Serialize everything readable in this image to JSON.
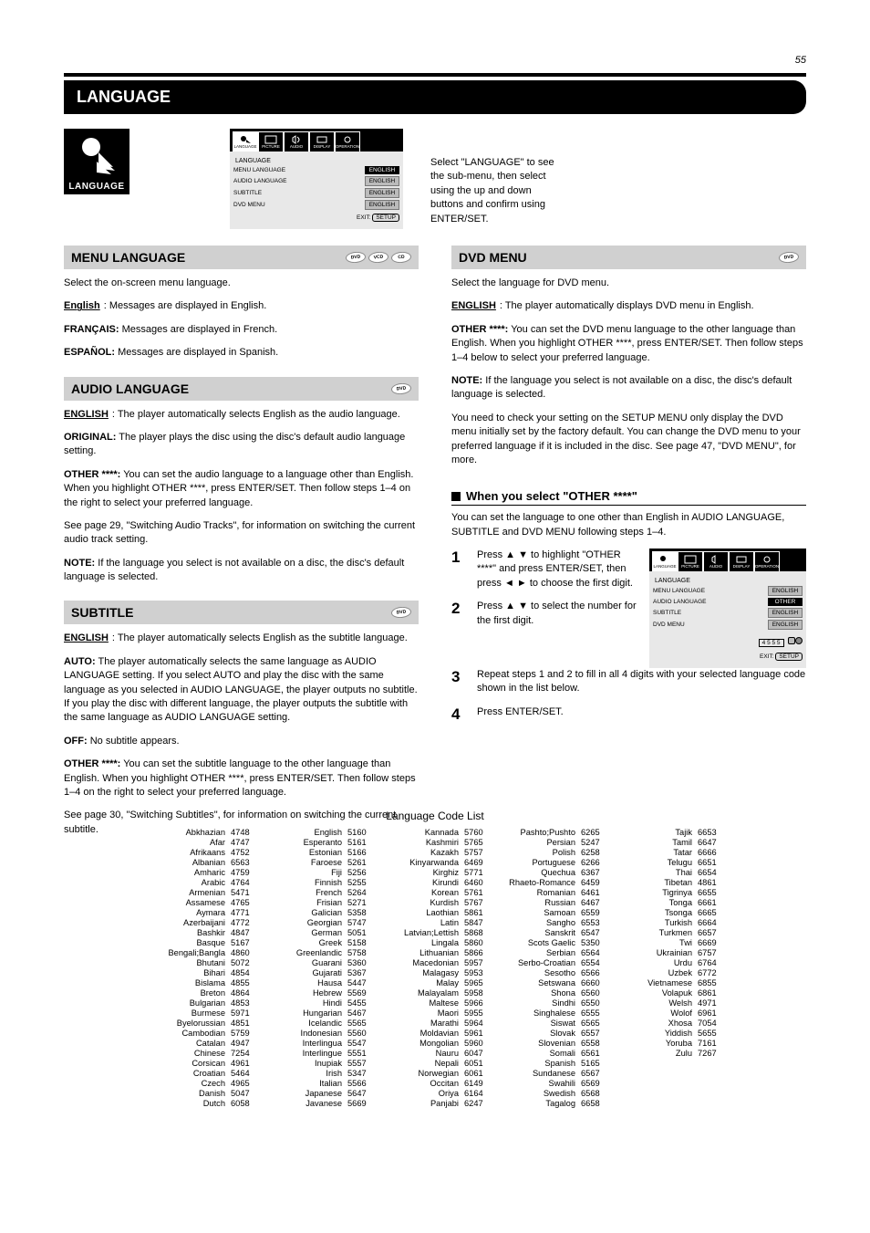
{
  "page_number": "55",
  "section_title": "LANGUAGE",
  "language_icon_label": "LANGUAGE",
  "intro_text": "Select \"LANGUAGE\" to see the sub-menu, then select using the up and down buttons and confirm using ENTER/SET.",
  "main_menu": {
    "tabs": [
      "LANGUAGE",
      "PICTURE",
      "AUDIO",
      "DISPLAY",
      "OPERATION"
    ],
    "section_label": "LANGUAGE",
    "items": [
      {
        "label": "MENU LANGUAGE",
        "value": "ENGLISH"
      },
      {
        "label": "AUDIO LANGUAGE",
        "value": "ENGLISH"
      },
      {
        "label": "SUBTITLE",
        "value": "ENGLISH"
      },
      {
        "label": "DVD MENU",
        "value": "ENGLISH"
      }
    ],
    "exit_label": "EXIT: ",
    "exit_btn": "SETUP"
  },
  "subsection_menu": {
    "title": "MENU LANGUAGE",
    "discs": [
      "DVD",
      "VCD",
      "CD"
    ],
    "body": "Select the on-screen menu language.",
    "line_en": "English",
    "line_en_desc": "Messages are displayed in English.",
    "line_fr_label": "FRANÇAIS:",
    "line_fr_desc": "Messages are displayed in French.",
    "line_es": "ESPAÑOL:",
    "line_es_desc": "Messages are displayed in Spanish."
  },
  "subsection_audio": {
    "title": "AUDIO LANGUAGE",
    "discs": [
      "DVD"
    ],
    "intro_label": "ENGLISH",
    "intro_desc1": ": The player automatically selects English as the audio language.",
    "orig_label": "ORIGINAL:",
    "orig_desc": " The player plays the disc using the disc's default audio language setting.",
    "other_label": "OTHER ****:",
    "other_desc": " You can set the audio language to a language other than English. When you highlight OTHER ****, press ENTER/SET. Then follow steps 1–4 on the right to select your preferred language.",
    "see_ref": "See page 29, \"Switching Audio Tracks\", for information on switching the current audio track setting.",
    "note_label": "NOTE:",
    "note_body": " If the language you select is not available on a disc, the disc's default language is selected."
  },
  "subsection_subtitle": {
    "title": "SUBTITLE",
    "discs": [
      "DVD"
    ],
    "intro_label": "ENGLISH",
    "intro_desc1": ": The player automatically selects English as the subtitle language.",
    "auto_label": "AUTO:",
    "auto_desc": " The player automatically selects the same language as AUDIO LANGUAGE setting. If you select AUTO and play the disc with the same language as you selected in AUDIO LANGUAGE, the player outputs no subtitle. If you play the disc with different language, the player outputs the subtitle with the same language as AUDIO LANGUAGE setting.",
    "off_label": "OFF:",
    "off_desc": " No subtitle appears.",
    "other_label": "OTHER ****:",
    "other_desc": " You can set the subtitle language to the other language than English. When you highlight OTHER ****, press ENTER/SET. Then follow steps 1–4 on the right to select your preferred language.",
    "see_ref": "See page 30, \"Switching Subtitles\", for information on switching the current subtitle."
  },
  "subsection_dvdmenu": {
    "title": "DVD MENU",
    "discs": [
      "DVD"
    ],
    "intro_label": "ENGLISH",
    "intro_desc": ": The player automatically displays DVD menu in English.",
    "menu_intro": "Select the language for DVD menu.",
    "other_label": "OTHER ****:",
    "other_desc": " You can set the DVD menu language to the other language than English. When you highlight OTHER ****, press ENTER/SET. Then follow steps 1–4 below to select your preferred language.",
    "note_label": "NOTE:",
    "note_body": " If the language you select is not available on a disc, the disc's default language is selected.",
    "settings_ref": "You need to check your setting on the SETUP MENU only display the DVD menu initially set by the factory default. You can change the DVD menu to your preferred language if it is included in the disc. See page 47, \"DVD MENU\", for more."
  },
  "other_steps_title": "When you select \"OTHER ****\"",
  "other_steps_intro": "You can set the language to one other than English in AUDIO LANGUAGE, SUBTITLE and DVD MENU following steps 1–4.",
  "steps": [
    {
      "num": "1",
      "text": "Press ▲ ▼ to highlight \"OTHER ****\" and press ENTER/SET, then press ◄ ► to choose the first digit."
    },
    {
      "num": "2",
      "text": "Press ▲ ▼ to select the number for the first digit."
    },
    {
      "num": "3",
      "text": "Repeat steps 1 and 2 to fill in all 4 digits with your selected language code shown in the list below."
    },
    {
      "num": "4",
      "text": "Press ENTER/SET."
    }
  ],
  "step_menu": {
    "section_label": "LANGUAGE",
    "items": [
      {
        "label": "MENU LANGUAGE",
        "value": "ENGLISH"
      },
      {
        "label": "AUDIO LANGUAGE",
        "value": "OTHER"
      },
      {
        "label": "SUBTITLE",
        "value": "ENGLISH"
      },
      {
        "label": "DVD MENU",
        "value": "ENGLISH"
      }
    ],
    "code_display": "4 5 5 5",
    "exit_label": "EXIT: ",
    "exit_btn": "SETUP"
  },
  "code_table_title": "Language Code List",
  "codes_col1": [
    [
      "Abkhazian",
      "4748"
    ],
    [
      "Afar",
      "4747"
    ],
    [
      "Afrikaans",
      "4752"
    ],
    [
      "Albanian",
      "6563"
    ],
    [
      "Amharic",
      "4759"
    ],
    [
      "Arabic",
      "4764"
    ],
    [
      "Armenian",
      "5471"
    ],
    [
      "Assamese",
      "4765"
    ],
    [
      "Aymara",
      "4771"
    ],
    [
      "Azerbaijani",
      "4772"
    ],
    [
      "Bashkir",
      "4847"
    ],
    [
      "Basque",
      "5167"
    ],
    [
      "Bengali;Bangla",
      "4860"
    ],
    [
      "Bhutani",
      "5072"
    ],
    [
      "Bihari",
      "4854"
    ],
    [
      "Bislama",
      "4855"
    ],
    [
      "Breton",
      "4864"
    ],
    [
      "Bulgarian",
      "4853"
    ],
    [
      "Burmese",
      "5971"
    ],
    [
      "Byelorussian",
      "4851"
    ],
    [
      "Cambodian",
      "5759"
    ],
    [
      "Catalan",
      "4947"
    ],
    [
      "Chinese",
      "7254"
    ],
    [
      "Corsican",
      "4961"
    ],
    [
      "Croatian",
      "5464"
    ],
    [
      "Czech",
      "4965"
    ],
    [
      "Danish",
      "5047"
    ],
    [
      "Dutch",
      "6058"
    ]
  ],
  "codes_col2": [
    [
      "English",
      "5160"
    ],
    [
      "Esperanto",
      "5161"
    ],
    [
      "Estonian",
      "5166"
    ],
    [
      "Faroese",
      "5261"
    ],
    [
      "Fiji",
      "5256"
    ],
    [
      "Finnish",
      "5255"
    ],
    [
      "French",
      "5264"
    ],
    [
      "Frisian",
      "5271"
    ],
    [
      "Galician",
      "5358"
    ],
    [
      "Georgian",
      "5747"
    ],
    [
      "German",
      "5051"
    ],
    [
      "Greek",
      "5158"
    ],
    [
      "Greenlandic",
      "5758"
    ],
    [
      "Guarani",
      "5360"
    ],
    [
      "Gujarati",
      "5367"
    ],
    [
      "Hausa",
      "5447"
    ],
    [
      "Hebrew",
      "5569"
    ],
    [
      "Hindi",
      "5455"
    ],
    [
      "Hungarian",
      "5467"
    ],
    [
      "Icelandic",
      "5565"
    ],
    [
      "Indonesian",
      "5560"
    ],
    [
      "Interlingua",
      "5547"
    ],
    [
      "Interlingue",
      "5551"
    ],
    [
      "Inupiak",
      "5557"
    ],
    [
      "Irish",
      "5347"
    ],
    [
      "Italian",
      "5566"
    ],
    [
      "Japanese",
      "5647"
    ],
    [
      "Javanese",
      "5669"
    ]
  ],
  "codes_col3": [
    [
      "Kannada",
      "5760"
    ],
    [
      "Kashmiri",
      "5765"
    ],
    [
      "Kazakh",
      "5757"
    ],
    [
      "Kinyarwanda",
      "6469"
    ],
    [
      "Kirghiz",
      "5771"
    ],
    [
      "Kirundi",
      "6460"
    ],
    [
      "Korean",
      "5761"
    ],
    [
      "Kurdish",
      "5767"
    ],
    [
      "Laothian",
      "5861"
    ],
    [
      "Latin",
      "5847"
    ],
    [
      "Latvian;Lettish",
      "5868"
    ],
    [
      "Lingala",
      "5860"
    ],
    [
      "Lithuanian",
      "5866"
    ],
    [
      "Macedonian",
      "5957"
    ],
    [
      "Malagasy",
      "5953"
    ],
    [
      "Malay",
      "5965"
    ],
    [
      "Malayalam",
      "5958"
    ],
    [
      "Maltese",
      "5966"
    ],
    [
      "Maori",
      "5955"
    ],
    [
      "Marathi",
      "5964"
    ],
    [
      "Moldavian",
      "5961"
    ],
    [
      "Mongolian",
      "5960"
    ],
    [
      "Nauru",
      "6047"
    ],
    [
      "Nepali",
      "6051"
    ],
    [
      "Norwegian",
      "6061"
    ],
    [
      "Occitan",
      "6149"
    ],
    [
      "Oriya",
      "6164"
    ],
    [
      "Panjabi",
      "6247"
    ]
  ],
  "codes_col4": [
    [
      "Pashto;Pushto",
      "6265"
    ],
    [
      "Persian",
      "5247"
    ],
    [
      "Polish",
      "6258"
    ],
    [
      "Portuguese",
      "6266"
    ],
    [
      "Quechua",
      "6367"
    ],
    [
      "Rhaeto-Romance",
      "6459"
    ],
    [
      "Romanian",
      "6461"
    ],
    [
      "Russian",
      "6467"
    ],
    [
      "Samoan",
      "6559"
    ],
    [
      "Sangho",
      "6553"
    ],
    [
      "Sanskrit",
      "6547"
    ],
    [
      "Scots Gaelic",
      "5350"
    ],
    [
      "Serbian",
      "6564"
    ],
    [
      "Serbo-Croatian",
      "6554"
    ],
    [
      "Sesotho",
      "6566"
    ],
    [
      "Setswana",
      "6660"
    ],
    [
      "Shona",
      "6560"
    ],
    [
      "Sindhi",
      "6550"
    ],
    [
      "Singhalese",
      "6555"
    ],
    [
      "Siswat",
      "6565"
    ],
    [
      "Slovak",
      "6557"
    ],
    [
      "Slovenian",
      "6558"
    ],
    [
      "Somali",
      "6561"
    ],
    [
      "Spanish",
      "5165"
    ],
    [
      "Sundanese",
      "6567"
    ],
    [
      "Swahili",
      "6569"
    ],
    [
      "Swedish",
      "6568"
    ],
    [
      "Tagalog",
      "6658"
    ]
  ],
  "codes_col5": [
    [
      "Tajik",
      "6653"
    ],
    [
      "Tamil",
      "6647"
    ],
    [
      "Tatar",
      "6666"
    ],
    [
      "Telugu",
      "6651"
    ],
    [
      "Thai",
      "6654"
    ],
    [
      "Tibetan",
      "4861"
    ],
    [
      "Tigrinya",
      "6655"
    ],
    [
      "Tonga",
      "6661"
    ],
    [
      "Tsonga",
      "6665"
    ],
    [
      "Turkish",
      "6664"
    ],
    [
      "Turkmen",
      "6657"
    ],
    [
      "Twi",
      "6669"
    ],
    [
      "Ukrainian",
      "6757"
    ],
    [
      "Urdu",
      "6764"
    ],
    [
      "Uzbek",
      "6772"
    ],
    [
      "Vietnamese",
      "6855"
    ],
    [
      "Volapuk",
      "6861"
    ],
    [
      "Welsh",
      "4971"
    ],
    [
      "Wolof",
      "6961"
    ],
    [
      "Xhosa",
      "7054"
    ],
    [
      "Yiddish",
      "5655"
    ],
    [
      "Yoruba",
      "7161"
    ],
    [
      "Zulu",
      "7267"
    ]
  ]
}
